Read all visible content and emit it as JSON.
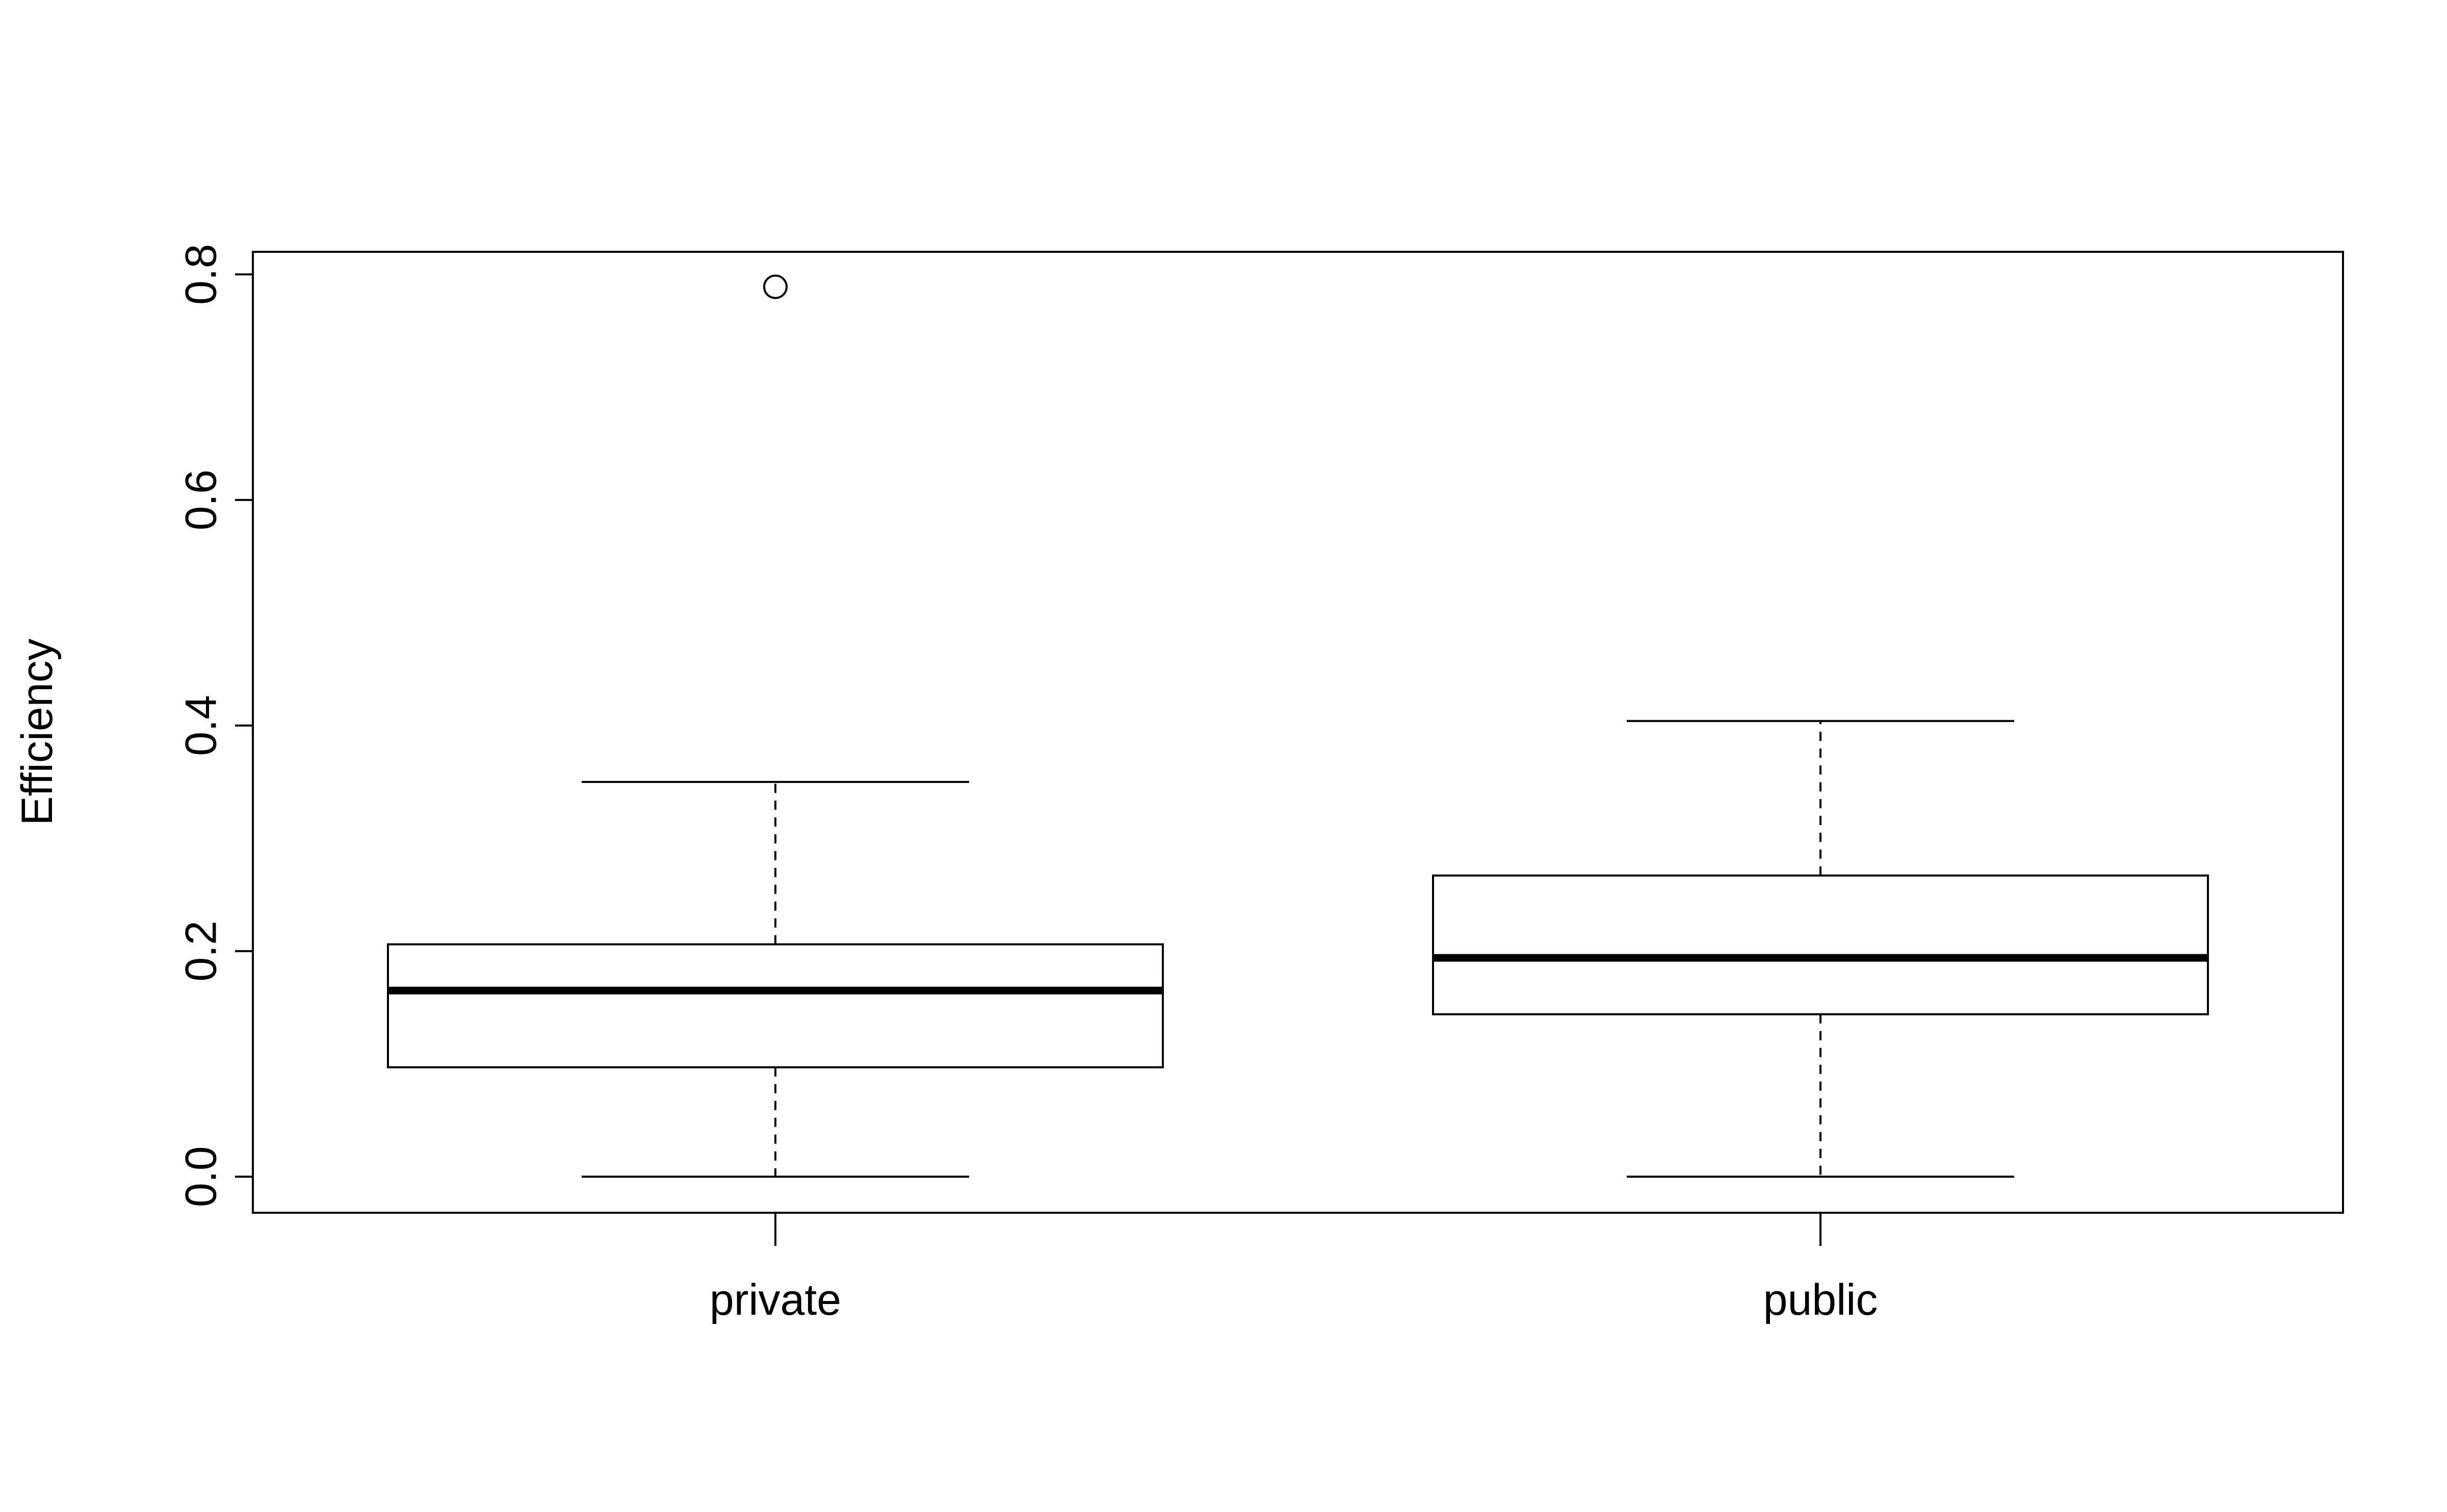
{
  "chart_data": {
    "type": "boxplot",
    "title": "",
    "xlabel": "",
    "ylabel": "Efficiency",
    "ylim": [
      -0.032,
      0.82
    ],
    "yticks": [
      0.0,
      0.2,
      0.4,
      0.6,
      0.8
    ],
    "ytick_labels": [
      "0.0",
      "0.2",
      "0.4",
      "0.6",
      "0.8"
    ],
    "grid": false,
    "legend": "none",
    "categories": [
      "private",
      "public"
    ],
    "boxes": [
      {
        "category": "private",
        "whisker_low": 0.0,
        "q1": 0.097,
        "median": 0.165,
        "q3": 0.206,
        "whisker_high": 0.35,
        "outliers": [
          0.789
        ]
      },
      {
        "category": "public",
        "whisker_low": 0.0,
        "q1": 0.144,
        "median": 0.194,
        "q3": 0.267,
        "whisker_high": 0.404,
        "outliers": []
      }
    ]
  }
}
